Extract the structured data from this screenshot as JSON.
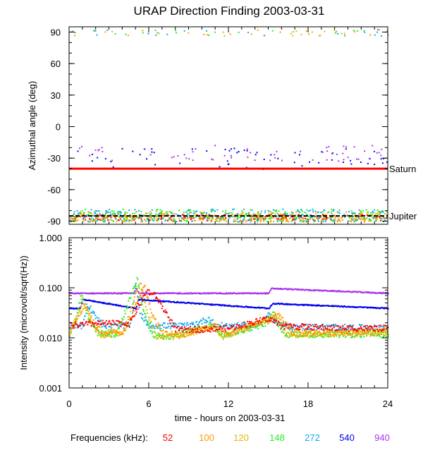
{
  "title": "URAP Direction Finding  2003-03-31",
  "xlabel": "time - hours on 2003-03-31",
  "legend": {
    "label": "Frequencies (kHz):",
    "items": [
      {
        "name": "52",
        "color": "#ff0000"
      },
      {
        "name": "100",
        "color": "#ff9900"
      },
      {
        "name": "120",
        "color": "#ddbb00"
      },
      {
        "name": "148",
        "color": "#22ee22"
      },
      {
        "name": "272",
        "color": "#11aaee"
      },
      {
        "name": "540",
        "color": "#0000ee"
      },
      {
        "name": "940",
        "color": "#aa33ee"
      }
    ]
  },
  "chart_data": [
    {
      "type": "scatter",
      "panel": "top",
      "ylabel": "Azimuthal angle (deg)",
      "xlim": [
        0,
        24
      ],
      "ylim": [
        -93,
        95
      ],
      "xticks": [
        "0",
        "6",
        "12",
        "18",
        "24"
      ],
      "yticks": [
        "90",
        "60",
        "30",
        "0",
        "-30",
        "-60",
        "-90"
      ],
      "grid": false,
      "reference_lines": [
        {
          "label": "Saturn",
          "y": -40,
          "color": "#ff0000"
        },
        {
          "label": "Jupiter",
          "y": -85,
          "color": "#000000"
        }
      ],
      "series": [
        {
          "name": "52",
          "clusters": [
            {
              "y": -86,
              "spread": 3
            }
          ]
        },
        {
          "name": "100",
          "clusters": [
            {
              "y": -86,
              "spread": 4
            },
            {
              "y": 90,
              "spread": 3
            }
          ]
        },
        {
          "name": "120",
          "clusters": [
            {
              "y": -85,
              "spread": 5
            },
            {
              "y": 90,
              "spread": 3
            }
          ]
        },
        {
          "name": "148",
          "clusters": [
            {
              "y": -84,
              "spread": 6
            },
            {
              "y": 90,
              "spread": 3
            }
          ]
        },
        {
          "name": "272",
          "clusters": [
            {
              "y": -84,
              "spread": 6
            },
            {
              "y": 90,
              "spread": 3
            }
          ]
        },
        {
          "name": "540",
          "clusters": [
            {
              "y": -30,
              "spread": 10
            }
          ]
        },
        {
          "name": "940",
          "clusters": [
            {
              "y": -25,
              "spread": 8
            }
          ]
        }
      ]
    },
    {
      "type": "scatter",
      "panel": "bottom",
      "ylabel": "Intensity (microvolt/sqrt(Hz))",
      "xlim": [
        0,
        24
      ],
      "ylim": [
        0.001,
        1.0
      ],
      "yscale": "log",
      "xticks": [
        "0",
        "6",
        "12",
        "18",
        "24"
      ],
      "yticks": [
        "1.000",
        "0.100",
        "0.010",
        "0.001"
      ],
      "grid": false,
      "series": [
        {
          "name": "940",
          "x": [
            0,
            4.8,
            5.0,
            5.2,
            15.0,
            15.2,
            24
          ],
          "y": [
            0.08,
            0.08,
            0.1,
            0.08,
            0.08,
            0.1,
            0.08
          ]
        },
        {
          "name": "540",
          "x": [
            0,
            0.8,
            1.0,
            5.0,
            5.2,
            15.0,
            15.3,
            24
          ],
          "y": [
            0.04,
            0.04,
            0.06,
            0.04,
            0.06,
            0.04,
            0.05,
            0.04
          ]
        },
        {
          "name": "272",
          "x": [
            0,
            1.0,
            1.3,
            2.5,
            4.6,
            5.0,
            5.3,
            6.0,
            9.0,
            10.5,
            11.0,
            12.0,
            14.0,
            15.0,
            15.6,
            16.5,
            20.0,
            24
          ],
          "y": [
            0.018,
            0.018,
            0.05,
            0.018,
            0.018,
            0.13,
            0.03,
            0.018,
            0.018,
            0.025,
            0.018,
            0.018,
            0.018,
            0.03,
            0.02,
            0.017,
            0.017,
            0.016
          ]
        },
        {
          "name": "148",
          "x": [
            0,
            0.9,
            1.3,
            2.0,
            3.5,
            5.1,
            5.5,
            6.2,
            7.5,
            10.7,
            11.5,
            14.8,
            15.3,
            16.2,
            24
          ],
          "y": [
            0.011,
            0.07,
            0.03,
            0.013,
            0.012,
            0.15,
            0.04,
            0.012,
            0.011,
            0.018,
            0.011,
            0.02,
            0.03,
            0.012,
            0.012
          ]
        },
        {
          "name": "120",
          "x": [
            0,
            1.0,
            1.5,
            2.2,
            4.0,
            5.3,
            5.8,
            6.5,
            8.0,
            10.8,
            11.6,
            15.0,
            15.5,
            16.4,
            24
          ],
          "y": [
            0.012,
            0.06,
            0.025,
            0.012,
            0.012,
            0.14,
            0.035,
            0.011,
            0.011,
            0.017,
            0.011,
            0.025,
            0.03,
            0.012,
            0.013
          ]
        },
        {
          "name": "100",
          "x": [
            0,
            1.2,
            1.8,
            2.5,
            4.2,
            5.6,
            6.2,
            7.0,
            8.5,
            11.0,
            12.0,
            15.2,
            15.8,
            16.8,
            24
          ],
          "y": [
            0.014,
            0.05,
            0.02,
            0.013,
            0.014,
            0.12,
            0.03,
            0.013,
            0.012,
            0.018,
            0.012,
            0.025,
            0.028,
            0.013,
            0.014
          ]
        },
        {
          "name": "52",
          "x": [
            0,
            2.0,
            4.5,
            5.8,
            6.5,
            7.5,
            8.0,
            9.0,
            12.0,
            15.0,
            16.0,
            20.0,
            24
          ],
          "y": [
            0.018,
            0.02,
            0.02,
            0.09,
            0.07,
            0.025,
            0.015,
            0.015,
            0.016,
            0.025,
            0.018,
            0.016,
            0.016
          ]
        }
      ]
    }
  ]
}
